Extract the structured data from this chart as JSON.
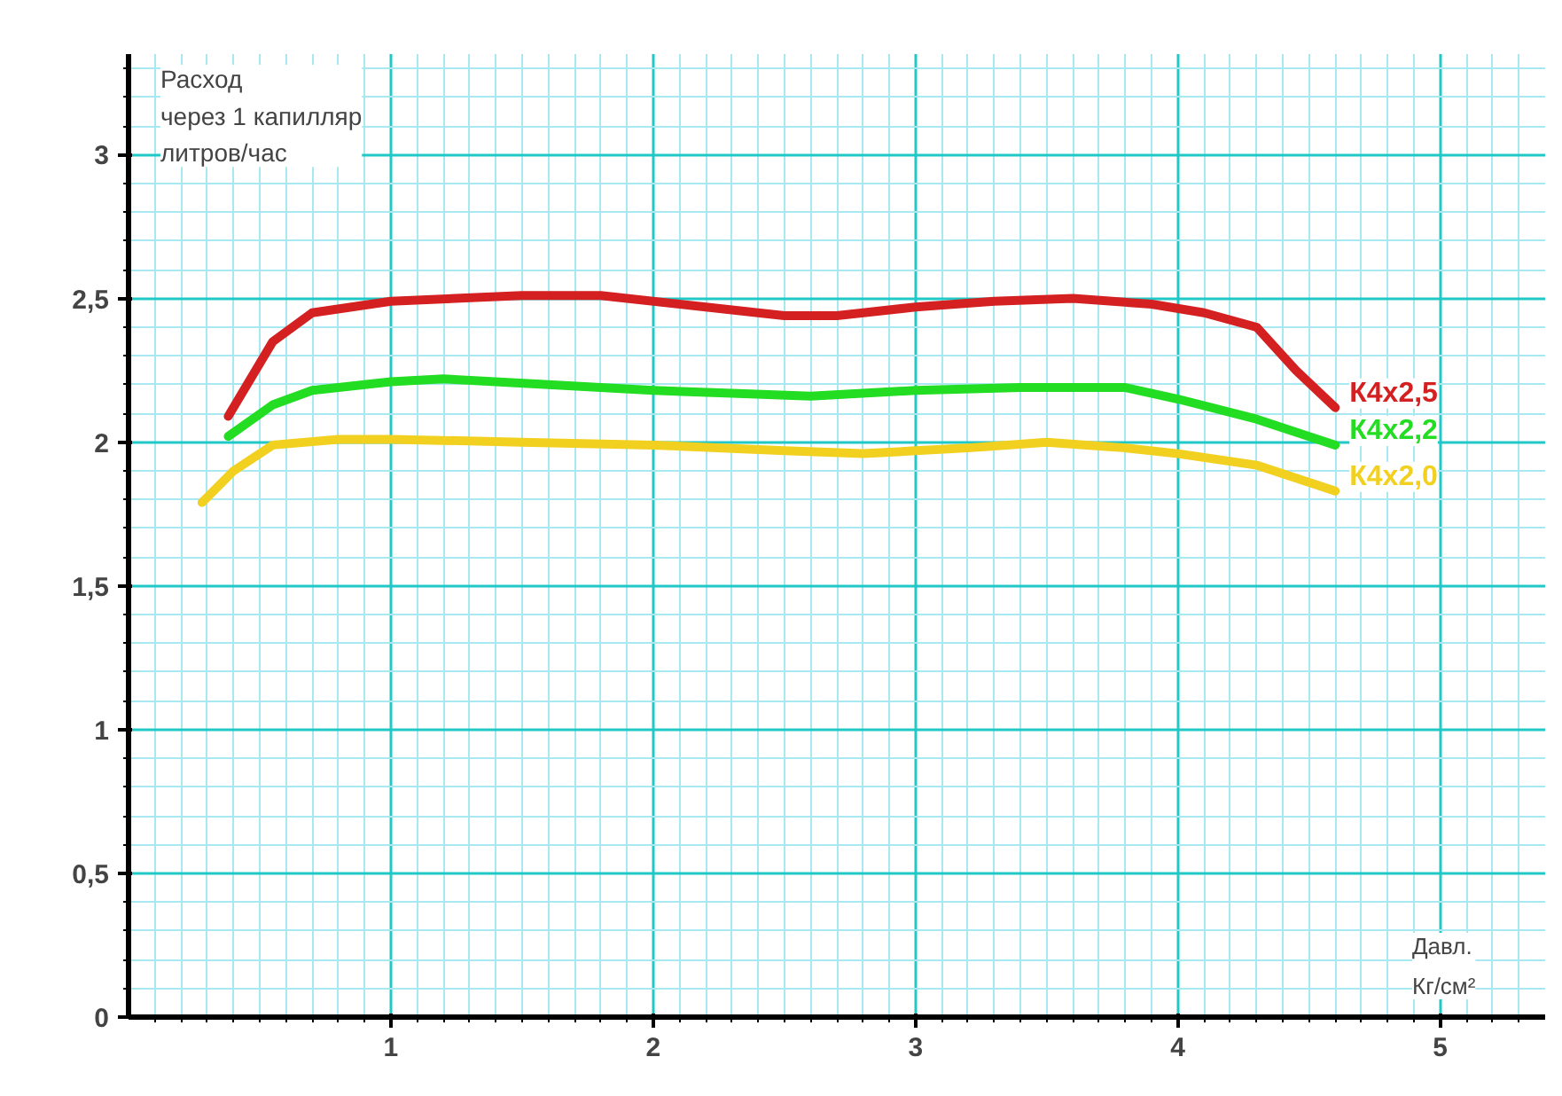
{
  "chart_data": {
    "type": "line",
    "xlabel": "Давл.\nКг/см²",
    "ylabel": "Расход\nчерез 1 капилляр\nлитров/час",
    "xlim": [
      0,
      5.4
    ],
    "ylim": [
      0,
      3.35
    ],
    "xticks": [
      {
        "value": 0.1,
        "label": null
      },
      {
        "value": 0.2,
        "label": null
      },
      {
        "value": 0.3,
        "label": null
      },
      {
        "value": 0.4,
        "label": null
      },
      {
        "value": 0.5,
        "label": null
      },
      {
        "value": 0.6,
        "label": null
      },
      {
        "value": 0.7,
        "label": null
      },
      {
        "value": 0.8,
        "label": null
      },
      {
        "value": 0.9,
        "label": null
      },
      1,
      {
        "value": 1.1,
        "label": null
      },
      {
        "value": 1.2,
        "label": null
      },
      {
        "value": 1.3,
        "label": null
      },
      {
        "value": 1.4,
        "label": null
      },
      {
        "value": 1.5,
        "label": null
      },
      {
        "value": 1.6,
        "label": null
      },
      {
        "value": 1.7,
        "label": null
      },
      {
        "value": 1.8,
        "label": null
      },
      {
        "value": 1.9,
        "label": null
      },
      2,
      {
        "value": 2.1,
        "label": null
      },
      {
        "value": 2.2,
        "label": null
      },
      {
        "value": 2.3,
        "label": null
      },
      {
        "value": 2.4,
        "label": null
      },
      {
        "value": 2.5,
        "label": null
      },
      {
        "value": 2.6,
        "label": null
      },
      {
        "value": 2.7,
        "label": null
      },
      {
        "value": 2.8,
        "label": null
      },
      {
        "value": 2.9,
        "label": null
      },
      3,
      {
        "value": 3.1,
        "label": null
      },
      {
        "value": 3.2,
        "label": null
      },
      {
        "value": 3.3,
        "label": null
      },
      {
        "value": 3.4,
        "label": null
      },
      {
        "value": 3.5,
        "label": null
      },
      {
        "value": 3.6,
        "label": null
      },
      {
        "value": 3.7,
        "label": null
      },
      {
        "value": 3.8,
        "label": null
      },
      {
        "value": 3.9,
        "label": null
      },
      4,
      {
        "value": 4.1,
        "label": null
      },
      {
        "value": 4.2,
        "label": null
      },
      {
        "value": 4.3,
        "label": null
      },
      {
        "value": 4.4,
        "label": null
      },
      {
        "value": 4.5,
        "label": null
      },
      {
        "value": 4.6,
        "label": null
      },
      {
        "value": 4.7,
        "label": null
      },
      {
        "value": 4.8,
        "label": null
      },
      {
        "value": 4.9,
        "label": null
      },
      5,
      {
        "value": 5.1,
        "label": null
      },
      {
        "value": 5.2,
        "label": null
      },
      {
        "value": 5.3,
        "label": null
      }
    ],
    "yticks": [
      0,
      {
        "value": 0.1,
        "label": null
      },
      {
        "value": 0.2,
        "label": null
      },
      {
        "value": 0.3,
        "label": null
      },
      {
        "value": 0.4,
        "label": null
      },
      {
        "value": 0.5,
        "label": "0,5"
      },
      {
        "value": 0.6,
        "label": null
      },
      {
        "value": 0.7,
        "label": null
      },
      {
        "value": 0.8,
        "label": null
      },
      {
        "value": 0.9,
        "label": null
      },
      1,
      {
        "value": 1.1,
        "label": null
      },
      {
        "value": 1.2,
        "label": null
      },
      {
        "value": 1.3,
        "label": null
      },
      {
        "value": 1.4,
        "label": null
      },
      {
        "value": 1.5,
        "label": "1,5"
      },
      {
        "value": 1.6,
        "label": null
      },
      {
        "value": 1.7,
        "label": null
      },
      {
        "value": 1.8,
        "label": null
      },
      {
        "value": 1.9,
        "label": null
      },
      2,
      {
        "value": 2.1,
        "label": null
      },
      {
        "value": 2.2,
        "label": null
      },
      {
        "value": 2.3,
        "label": null
      },
      {
        "value": 2.4,
        "label": null
      },
      {
        "value": 2.5,
        "label": "2,5"
      },
      {
        "value": 2.6,
        "label": null
      },
      {
        "value": 2.7,
        "label": null
      },
      {
        "value": 2.8,
        "label": null
      },
      {
        "value": 2.9,
        "label": null
      },
      3,
      {
        "value": 3.1,
        "label": null
      },
      {
        "value": 3.2,
        "label": null
      },
      {
        "value": 3.3,
        "label": null
      }
    ],
    "grid": true,
    "legend": false,
    "line_style": "solid",
    "marker": "none",
    "series": [
      {
        "name": "К4х2,5",
        "color": "#d42020",
        "x": [
          0.38,
          0.55,
          0.7,
          1.0,
          1.5,
          1.8,
          2.2,
          2.5,
          2.7,
          3.0,
          3.3,
          3.6,
          3.9,
          4.1,
          4.3,
          4.45,
          4.6
        ],
        "values": [
          2.09,
          2.35,
          2.45,
          2.49,
          2.51,
          2.51,
          2.47,
          2.44,
          2.44,
          2.47,
          2.49,
          2.5,
          2.48,
          2.45,
          2.4,
          2.25,
          2.12
        ]
      },
      {
        "name": "К4х2,2",
        "color": "#22dd22",
        "x": [
          0.38,
          0.55,
          0.7,
          1.0,
          1.2,
          1.6,
          2.0,
          2.3,
          2.6,
          3.0,
          3.4,
          3.8,
          4.0,
          4.3,
          4.6
        ],
        "values": [
          2.02,
          2.13,
          2.18,
          2.21,
          2.22,
          2.2,
          2.18,
          2.17,
          2.16,
          2.18,
          2.19,
          2.19,
          2.15,
          2.08,
          1.99
        ]
      },
      {
        "name": "К4х2,0",
        "color": "#f2d020",
        "x": [
          0.28,
          0.4,
          0.55,
          0.8,
          1.0,
          1.5,
          2.0,
          2.5,
          2.8,
          3.0,
          3.2,
          3.5,
          3.8,
          4.0,
          4.3,
          4.6
        ],
        "values": [
          1.79,
          1.9,
          1.99,
          2.01,
          2.01,
          2.0,
          1.99,
          1.97,
          1.96,
          1.97,
          1.98,
          2.0,
          1.98,
          1.96,
          1.92,
          1.83
        ]
      }
    ]
  }
}
